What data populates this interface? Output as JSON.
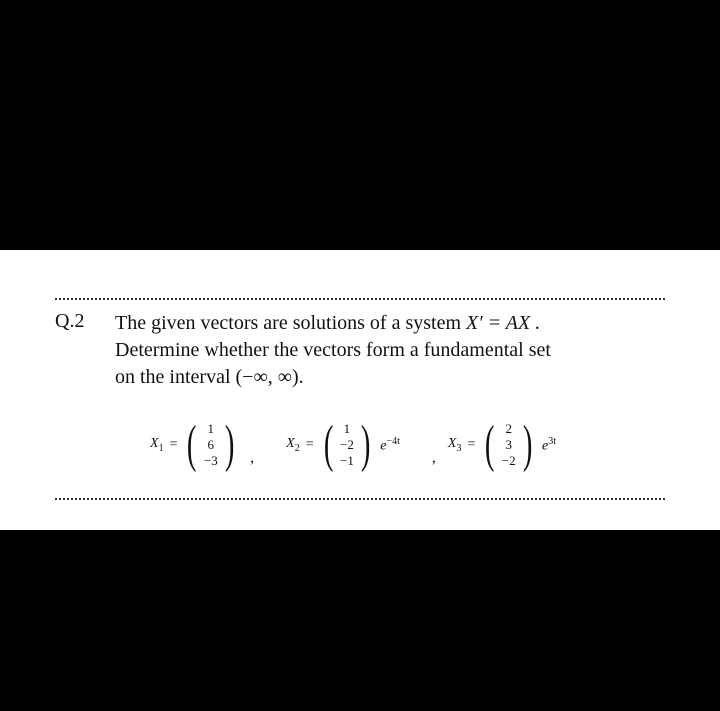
{
  "layout": {
    "page_bg": "#000000",
    "sheet_bg": "#ffffff",
    "dotted_color": "#333333"
  },
  "question": {
    "label": "Q.2",
    "text": "The given vectors are solutions of a system X′ = AX . Determine whether the vectors form a fundamental set on the interval (−∞, ∞).",
    "line1": "The  given   vectors are solutions of  a system  ",
    "eqn_inline": "X′ = AX .",
    "line2": "Determine whether the vectors form a fundamental set",
    "line3": "on the interval (−∞, ∞)."
  },
  "vectors": {
    "x1": {
      "name": "X",
      "sub": "1",
      "entries": [
        "1",
        "6",
        "−3"
      ],
      "factor": ""
    },
    "x2": {
      "name": "X",
      "sub": "2",
      "entries": [
        "1",
        "−2",
        "−1"
      ],
      "factor_base": "e",
      "factor_exp": "−4t"
    },
    "x3": {
      "name": "X",
      "sub": "3",
      "entries": [
        "2",
        "3",
        "−2"
      ],
      "factor_base": "e",
      "factor_exp": "3t"
    }
  }
}
